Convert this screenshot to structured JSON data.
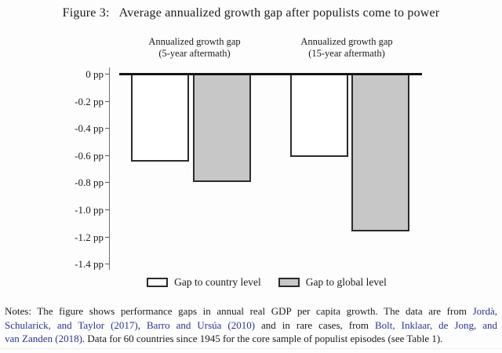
{
  "figure": {
    "title_prefix": "Figure 3:",
    "title_text": "Average annualized growth gap after populists come to power"
  },
  "chart_data": {
    "type": "bar",
    "unit": "pp",
    "groups": [
      {
        "label_line1": "Annualized growth gap",
        "label_line2": "(5-year aftermath)"
      },
      {
        "label_line1": "Annualized growth gap",
        "label_line2": "(15-year aftermath)"
      }
    ],
    "series": [
      {
        "name": "Gap to country level",
        "fill": "#ffffff",
        "values": [
          -0.65,
          -0.61
        ]
      },
      {
        "name": "Gap to global level",
        "fill": "#c7c7c7",
        "values": [
          -0.8,
          -1.16
        ]
      }
    ],
    "yticks": [
      0,
      -0.2,
      -0.4,
      -0.6,
      -0.8,
      -1.0,
      -1.2,
      -1.4
    ],
    "ytick_labels": [
      "0 pp",
      "-0.2 pp",
      "-0.4 pp",
      "-0.6 pp",
      "-0.8 pp",
      "-1.0 pp",
      "-1.2 pp",
      "-1.4 pp"
    ],
    "ylim": [
      -1.4,
      0
    ],
    "baseline": 0,
    "grid": "off",
    "legend_position": "bottom",
    "colors": {
      "zero_line": "#141414",
      "bar_border": "#2b2b2b",
      "axis": "#6e6e6e"
    }
  },
  "notes": {
    "link_color": "#2a3590",
    "lines": [
      [
        {
          "t": "Notes: The figure shows performance gaps in annual real GDP per capita growth. The data are from "
        },
        {
          "t": "Jordà,",
          "link": true
        }
      ],
      [
        {
          "t": "Schularick, and Taylor (2017)",
          "link": true
        },
        {
          "t": ", "
        },
        {
          "t": "Barro and Ursúa (2010)",
          "link": true
        },
        {
          "t": " and in rare cases, from "
        },
        {
          "t": "Bolt, Inklaar, de Jong, and",
          "link": true
        }
      ],
      [
        {
          "t": "van Zanden (2018)",
          "link": true
        },
        {
          "t": ". Data for 60 countries since 1945 for the core sample of populist episodes (see Table 1)."
        }
      ]
    ]
  }
}
